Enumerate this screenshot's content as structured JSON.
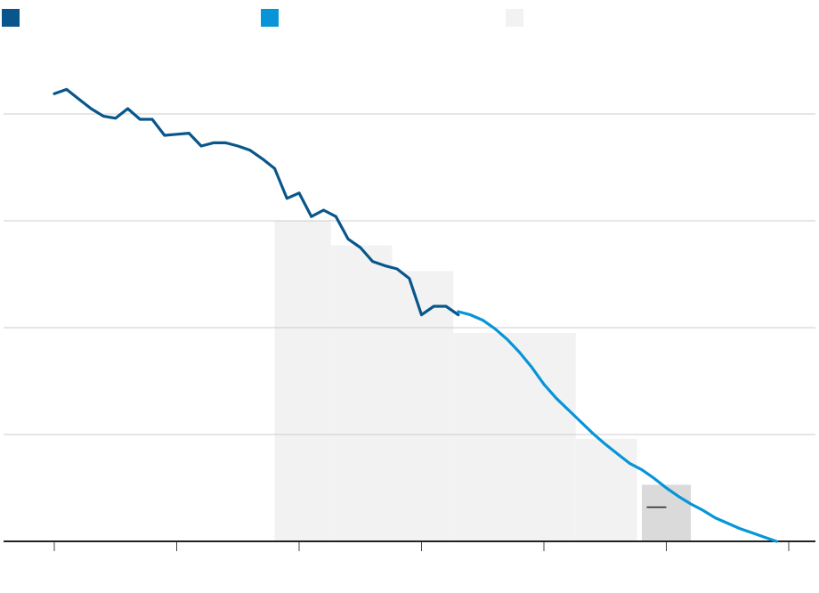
{
  "chart_data": {
    "type": "line",
    "title": "",
    "xlabel": "",
    "ylabel": "",
    "xlim": [
      1880,
      2180
    ],
    "ylim": [
      0,
      4
    ],
    "grid": true,
    "legend_placement": "top",
    "x_ticks": [
      1880,
      1930,
      1980,
      2030,
      2080,
      2130,
      2180
    ],
    "y_gridlines": [
      1,
      2,
      3,
      4
    ],
    "legend": [
      {
        "swatch_color": "#08568c",
        "label": ""
      },
      {
        "swatch_color": "#0795d8",
        "label": ""
      },
      {
        "swatch_color": "#f2f2f2",
        "label": ""
      }
    ],
    "series": [
      {
        "color": "#08568c",
        "values": [
          [
            1880,
            4.19
          ],
          [
            1885,
            4.23
          ],
          [
            1890,
            4.14
          ],
          [
            1895,
            4.05
          ],
          [
            1900,
            3.98
          ],
          [
            1905,
            3.96
          ],
          [
            1910,
            4.05
          ],
          [
            1915,
            3.95
          ],
          [
            1920,
            3.95
          ],
          [
            1925,
            3.8
          ],
          [
            1930,
            3.81
          ],
          [
            1935,
            3.82
          ],
          [
            1940,
            3.7
          ],
          [
            1945,
            3.73
          ],
          [
            1950,
            3.73
          ],
          [
            1955,
            3.7
          ],
          [
            1960,
            3.66
          ],
          [
            1965,
            3.58
          ],
          [
            1970,
            3.49
          ],
          [
            1975,
            3.21
          ],
          [
            1980,
            3.26
          ],
          [
            1985,
            3.04
          ],
          [
            1990,
            3.1
          ],
          [
            1995,
            3.04
          ],
          [
            2000,
            2.83
          ],
          [
            2005,
            2.75
          ],
          [
            2010,
            2.62
          ],
          [
            2015,
            2.58
          ],
          [
            2020,
            2.55
          ],
          [
            2025,
            2.46
          ],
          [
            2030,
            2.12
          ],
          [
            2035,
            2.2
          ],
          [
            2040,
            2.2
          ],
          [
            2045,
            2.12
          ]
        ]
      },
      {
        "color": "#0795d8",
        "values": [
          [
            2045,
            2.15
          ],
          [
            2050,
            2.12
          ],
          [
            2055,
            2.07
          ],
          [
            2060,
            1.99
          ],
          [
            2065,
            1.89
          ],
          [
            2070,
            1.77
          ],
          [
            2075,
            1.63
          ],
          [
            2080,
            1.47
          ],
          [
            2085,
            1.34
          ],
          [
            2090,
            1.23
          ],
          [
            2095,
            1.12
          ],
          [
            2100,
            1.01
          ],
          [
            2105,
            0.91
          ],
          [
            2110,
            0.82
          ],
          [
            2115,
            0.73
          ],
          [
            2120,
            0.67
          ],
          [
            2125,
            0.59
          ],
          [
            2130,
            0.5
          ],
          [
            2135,
            0.42
          ],
          [
            2140,
            0.35
          ],
          [
            2145,
            0.29
          ],
          [
            2150,
            0.22
          ],
          [
            2155,
            0.17
          ],
          [
            2160,
            0.12
          ],
          [
            2165,
            0.08
          ],
          [
            2170,
            0.04
          ],
          [
            2175,
            0.0
          ]
        ]
      }
    ],
    "bands": [
      {
        "x_start": 1970,
        "x_end": 1993,
        "value": 3.0,
        "color": "#f2f2f2"
      },
      {
        "x_start": 1993,
        "x_end": 2018,
        "value": 2.77,
        "color": "#f2f2f2"
      },
      {
        "x_start": 2018,
        "x_end": 2043,
        "value": 2.53,
        "color": "#f2f2f2"
      },
      {
        "x_start": 2043,
        "x_end": 2093,
        "value": 1.95,
        "color": "#f2f2f2"
      },
      {
        "x_start": 2093,
        "x_end": 2118,
        "value": 0.96,
        "color": "#f2f2f2"
      },
      {
        "x_start": 2120,
        "x_end": 2140,
        "value": 0.53,
        "color": "#dadada"
      }
    ],
    "annotations": [
      {
        "type": "dash-marker",
        "x": 2126,
        "y": 0.32
      }
    ]
  }
}
